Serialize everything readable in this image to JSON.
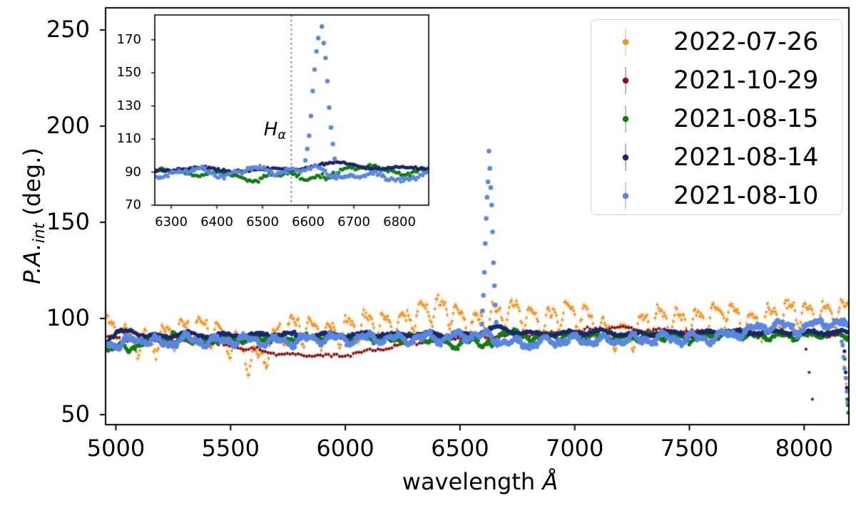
{
  "chart_data": {
    "type": "scatter",
    "title": "",
    "xlabel": "wavelength Å",
    "ylabel": "P.A._int (deg.)",
    "xlabel_parts": {
      "main": "wavelength ",
      "unit": "Å"
    },
    "ylabel_parts": {
      "main": "P.A.",
      "sub": "int",
      "rest": " (deg.)"
    },
    "xlim": [
      4955,
      8195
    ],
    "ylim": [
      44.8,
      261.5
    ],
    "xticks": [
      5000,
      5500,
      6000,
      6500,
      7000,
      7500,
      8000
    ],
    "yticks": [
      50,
      100,
      150,
      200,
      250
    ],
    "grid": false,
    "legend": {
      "position": "upper right"
    },
    "series": [
      {
        "name": "2022-07-26",
        "color": "#f59322",
        "light": "rgba(245,147,34,0.35)",
        "seed": 11,
        "step": 5,
        "radius": 1.9,
        "noise": 1.05,
        "errbar": 1.9,
        "in_inset": false,
        "nodes": [
          [
            4955,
            99
          ],
          [
            5060,
            90
          ],
          [
            5150,
            85
          ],
          [
            5250,
            94
          ],
          [
            5350,
            97
          ],
          [
            5450,
            90
          ],
          [
            5550,
            83
          ],
          [
            5620,
            80
          ],
          [
            5700,
            90
          ],
          [
            5750,
            94
          ],
          [
            5850,
            93
          ],
          [
            5950,
            95
          ],
          [
            6050,
            94
          ],
          [
            6150,
            97
          ],
          [
            6250,
            100
          ],
          [
            6350,
            103
          ],
          [
            6450,
            104
          ],
          [
            6550,
            99
          ],
          [
            6650,
            100
          ],
          [
            6750,
            103
          ],
          [
            6850,
            100
          ],
          [
            6950,
            102
          ],
          [
            7050,
            99
          ],
          [
            7150,
            94
          ],
          [
            7250,
            92
          ],
          [
            7350,
            99
          ],
          [
            7450,
            101
          ],
          [
            7550,
            98
          ],
          [
            7650,
            102
          ],
          [
            7750,
            99
          ],
          [
            7850,
            101
          ],
          [
            7950,
            102
          ],
          [
            8050,
            102
          ],
          [
            8120,
            105
          ],
          [
            8195,
            104
          ]
        ],
        "wiggles": [
          {
            "amp": 6.0,
            "period": 80,
            "phase": 0.5
          },
          {
            "amp": 3.0,
            "period": 40,
            "phase": 2.1
          },
          {
            "amp": 2.0,
            "period": 310,
            "phase": 4.0
          }
        ],
        "extra": [
          [
            8174,
            75
          ],
          [
            8183,
            66
          ]
        ]
      },
      {
        "name": "2021-10-29",
        "color": "#8b1010",
        "light": "rgba(139,16,16,0.35)",
        "seed": 22,
        "step": 12,
        "radius": 2.1,
        "noise": 0.4,
        "errbar": 1.1,
        "in_inset": false,
        "nodes": [
          [
            4955,
            90
          ],
          [
            5100,
            89
          ],
          [
            5250,
            88.5
          ],
          [
            5400,
            87
          ],
          [
            5500,
            86
          ],
          [
            5600,
            84
          ],
          [
            5700,
            82
          ],
          [
            5800,
            81
          ],
          [
            5900,
            80.5
          ],
          [
            6000,
            81
          ],
          [
            6100,
            82.5
          ],
          [
            6200,
            85
          ],
          [
            6300,
            87.5
          ],
          [
            6400,
            89.5
          ],
          [
            6500,
            90
          ],
          [
            6600,
            90.5
          ],
          [
            6700,
            91
          ],
          [
            6800,
            91.5
          ],
          [
            6900,
            92
          ],
          [
            7000,
            93
          ],
          [
            7100,
            94.5
          ],
          [
            7200,
            95
          ],
          [
            7300,
            94
          ],
          [
            7400,
            93.5
          ],
          [
            7500,
            93
          ],
          [
            7600,
            92.5
          ],
          [
            7700,
            93
          ],
          [
            7800,
            92
          ],
          [
            7900,
            92.5
          ],
          [
            8000,
            92
          ],
          [
            8060,
            91
          ],
          [
            8120,
            91.5
          ],
          [
            8195,
            90
          ]
        ],
        "wiggles": [
          {
            "amp": 0.6,
            "period": 160,
            "phase": 1.2
          }
        ],
        "extra": [
          [
            8008,
            84
          ],
          [
            8022,
            72
          ],
          [
            8036,
            58
          ]
        ]
      },
      {
        "name": "2021-08-15",
        "color": "#0f7d12",
        "light": "rgba(15,125,18,0.35)",
        "seed": 33,
        "step": 4,
        "radius": 2.6,
        "noise": 0.55,
        "errbar": 1.2,
        "in_inset": true,
        "nodes": [
          [
            4955,
            84
          ],
          [
            5000,
            86
          ],
          [
            5050,
            83.5
          ],
          [
            5100,
            87
          ],
          [
            5180,
            89.5
          ],
          [
            5280,
            90
          ],
          [
            5380,
            89
          ],
          [
            5480,
            90
          ],
          [
            5580,
            89
          ],
          [
            5680,
            90
          ],
          [
            5780,
            89.5
          ],
          [
            5880,
            90.5
          ],
          [
            5980,
            91
          ],
          [
            6080,
            90
          ],
          [
            6180,
            89
          ],
          [
            6280,
            90
          ],
          [
            6380,
            89
          ],
          [
            6440,
            88
          ],
          [
            6490,
            85.5
          ],
          [
            6530,
            87
          ],
          [
            6560,
            90
          ],
          [
            6600,
            86.5
          ],
          [
            6640,
            85.5
          ],
          [
            6690,
            94
          ],
          [
            6740,
            92.5
          ],
          [
            6790,
            90
          ],
          [
            6890,
            91
          ],
          [
            6990,
            90
          ],
          [
            7090,
            91
          ],
          [
            7190,
            90
          ],
          [
            7290,
            90.5
          ],
          [
            7390,
            91
          ],
          [
            7490,
            90
          ],
          [
            7590,
            91
          ],
          [
            7690,
            92
          ],
          [
            7790,
            91
          ],
          [
            7890,
            90.5
          ],
          [
            7990,
            91
          ],
          [
            8090,
            92
          ],
          [
            8195,
            91
          ]
        ],
        "wiggles": [
          {
            "amp": 1.3,
            "period": 115,
            "phase": 3.3
          },
          {
            "amp": 0.7,
            "period": 57,
            "phase": 0.8
          }
        ],
        "extra": [
          [
            8177,
            79
          ],
          [
            8183,
            69
          ],
          [
            8188,
            58
          ],
          [
            8192,
            51
          ]
        ]
      },
      {
        "name": "2021-08-14",
        "color": "#1b2766",
        "light": "rgba(27,39,102,0.35)",
        "seed": 44,
        "step": 4,
        "radius": 2.6,
        "noise": 0.4,
        "errbar": 1.0,
        "in_inset": true,
        "nodes": [
          [
            4955,
            88
          ],
          [
            5010,
            92.5
          ],
          [
            5070,
            94
          ],
          [
            5130,
            90.5
          ],
          [
            5210,
            91
          ],
          [
            5310,
            92
          ],
          [
            5410,
            91
          ],
          [
            5510,
            91.5
          ],
          [
            5610,
            91
          ],
          [
            5710,
            92
          ],
          [
            5810,
            91
          ],
          [
            5910,
            91.5
          ],
          [
            6010,
            91
          ],
          [
            6110,
            92
          ],
          [
            6210,
            91
          ],
          [
            6310,
            92
          ],
          [
            6410,
            91.5
          ],
          [
            6510,
            91
          ],
          [
            6570,
            92
          ],
          [
            6630,
            95
          ],
          [
            6670,
            95.5
          ],
          [
            6710,
            94
          ],
          [
            6760,
            92.5
          ],
          [
            6810,
            92
          ],
          [
            6910,
            92
          ],
          [
            7010,
            92.5
          ],
          [
            7110,
            93
          ],
          [
            7210,
            92
          ],
          [
            7310,
            92
          ],
          [
            7410,
            92.5
          ],
          [
            7510,
            92
          ],
          [
            7610,
            93
          ],
          [
            7710,
            93
          ],
          [
            7810,
            92.5
          ],
          [
            7910,
            93
          ],
          [
            8010,
            92.5
          ],
          [
            8110,
            93
          ],
          [
            8195,
            92.5
          ]
        ],
        "wiggles": [
          {
            "amp": 0.9,
            "period": 150,
            "phase": 5.0
          }
        ],
        "extra": [
          [
            8176,
            83
          ],
          [
            8181,
            72
          ],
          [
            8186,
            64
          ],
          [
            8191,
            55
          ]
        ]
      },
      {
        "name": "2021-08-10",
        "color": "#5b87e0",
        "light": "rgba(91,135,224,0.4)",
        "seed": 55,
        "step": 3,
        "radius": 3.0,
        "noise": 0.7,
        "errbar": 1.4,
        "in_inset": true,
        "nodes": [
          [
            4955,
            88
          ],
          [
            5020,
            85.5
          ],
          [
            5080,
            90
          ],
          [
            5140,
            88
          ],
          [
            5220,
            87.5
          ],
          [
            5320,
            89
          ],
          [
            5420,
            88
          ],
          [
            5520,
            89
          ],
          [
            5620,
            88.5
          ],
          [
            5720,
            88
          ],
          [
            5820,
            89
          ],
          [
            5920,
            90
          ],
          [
            6020,
            89
          ],
          [
            6120,
            90
          ],
          [
            6220,
            89
          ],
          [
            6320,
            90
          ],
          [
            6420,
            89.5
          ],
          [
            6500,
            91
          ],
          [
            6550,
            92
          ],
          [
            6600,
            91
          ],
          [
            6650,
            89
          ],
          [
            6700,
            88
          ],
          [
            6750,
            86.5
          ],
          [
            6800,
            87
          ],
          [
            6900,
            88
          ],
          [
            7000,
            89
          ],
          [
            7100,
            88
          ],
          [
            7200,
            89
          ],
          [
            7300,
            89
          ],
          [
            7400,
            90
          ],
          [
            7500,
            89.5
          ],
          [
            7600,
            90
          ],
          [
            7700,
            92
          ],
          [
            7800,
            95
          ],
          [
            7860,
            97
          ],
          [
            7920,
            95.5
          ],
          [
            7980,
            94.5
          ],
          [
            8040,
            96.5
          ],
          [
            8100,
            98
          ],
          [
            8150,
            97
          ],
          [
            8195,
            95
          ]
        ],
        "wiggles": [
          {
            "amp": 2.0,
            "period": 130,
            "phase": 2.6
          },
          {
            "amp": 1.0,
            "period": 63,
            "phase": 1.0
          }
        ],
        "spike": [
          [
            6594,
            97
          ],
          [
            6598,
            104
          ],
          [
            6602,
            112
          ],
          [
            6606,
            124
          ],
          [
            6610,
            139
          ],
          [
            6614,
            152
          ],
          [
            6618,
            163
          ],
          [
            6622,
            171
          ],
          [
            6626,
            187
          ],
          [
            6630,
            178
          ],
          [
            6634,
            168
          ],
          [
            6638,
            159
          ],
          [
            6642,
            145
          ],
          [
            6646,
            129
          ],
          [
            6650,
            117
          ],
          [
            6654,
            107
          ],
          [
            6658,
            98
          ],
          [
            6662,
            89
          ]
        ],
        "extra": [
          [
            8164,
            88
          ],
          [
            8168,
            86
          ],
          [
            8172,
            80
          ],
          [
            8176,
            74
          ],
          [
            8181,
            69
          ],
          [
            8186,
            62
          ],
          [
            8190,
            56
          ]
        ]
      }
    ],
    "inset": {
      "xlim": [
        6264,
        6864
      ],
      "ylim": [
        70,
        185
      ],
      "xticks": [
        6300,
        6400,
        6500,
        6600,
        6700,
        6800
      ],
      "yticks": [
        70,
        90,
        110,
        130,
        150,
        170
      ],
      "vline": {
        "x": 6563,
        "style": "dotted",
        "color": "#808080"
      },
      "annotation": {
        "main": "H",
        "sub": "α",
        "x": 6520,
        "y": 112
      }
    }
  }
}
